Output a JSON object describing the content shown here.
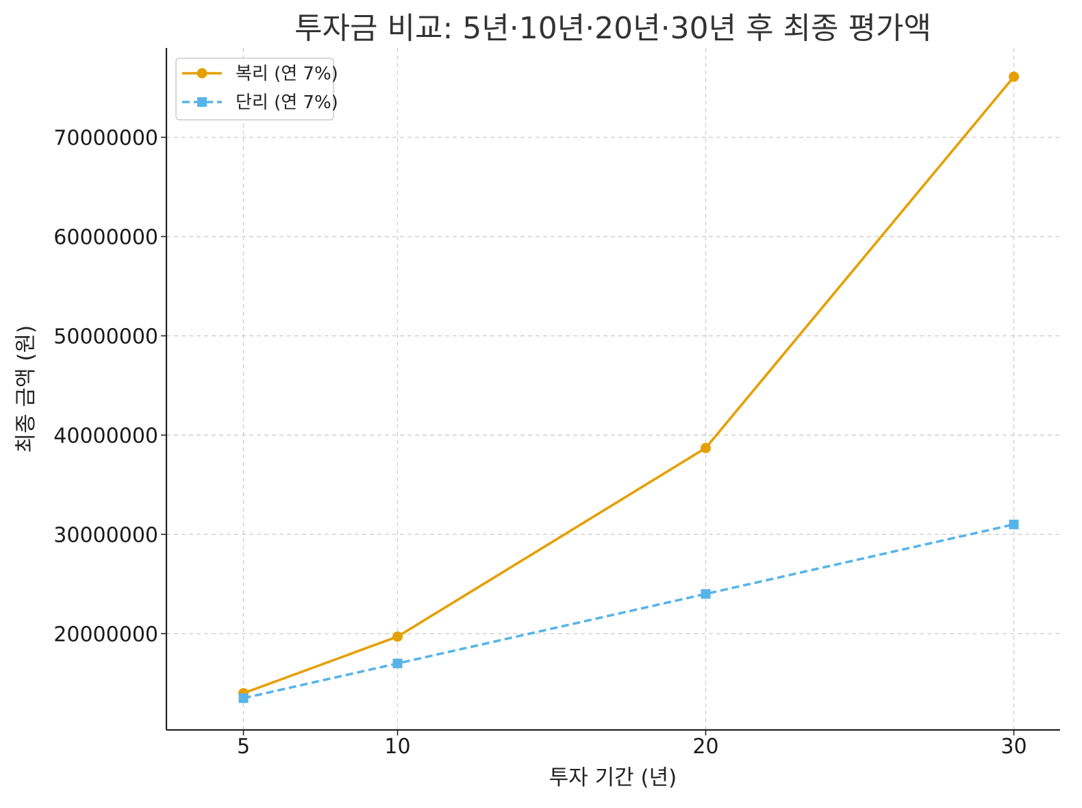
{
  "chart_data": {
    "type": "line",
    "title": "투자금 비교: 5년·10년·20년·30년 후 최종 평가액",
    "xlabel": "투자 기간 (년)",
    "ylabel": "최종 금액 (원)",
    "x": [
      5,
      10,
      20,
      30
    ],
    "x_ticks": [
      "5",
      "10",
      "20",
      "30"
    ],
    "y_ticks": [
      "20000000",
      "30000000",
      "40000000",
      "50000000",
      "60000000",
      "70000000"
    ],
    "y_tick_values": [
      20000000,
      30000000,
      40000000,
      50000000,
      60000000,
      70000000
    ],
    "xlim": [
      2.5,
      31.5
    ],
    "ylim": [
      10300000,
      79000000
    ],
    "grid": true,
    "legend_position": "top-left",
    "series": [
      {
        "name": "복리 (연 7%)",
        "values": [
          14000000,
          19700000,
          38700000,
          76100000
        ],
        "color": "#E69F00",
        "line_style": "solid",
        "marker": "circle"
      },
      {
        "name": "단리 (연 7%)",
        "values": [
          13500000,
          17000000,
          24000000,
          31000000
        ],
        "color": "#56B4E9",
        "line_style": "dashed",
        "marker": "square"
      }
    ]
  }
}
